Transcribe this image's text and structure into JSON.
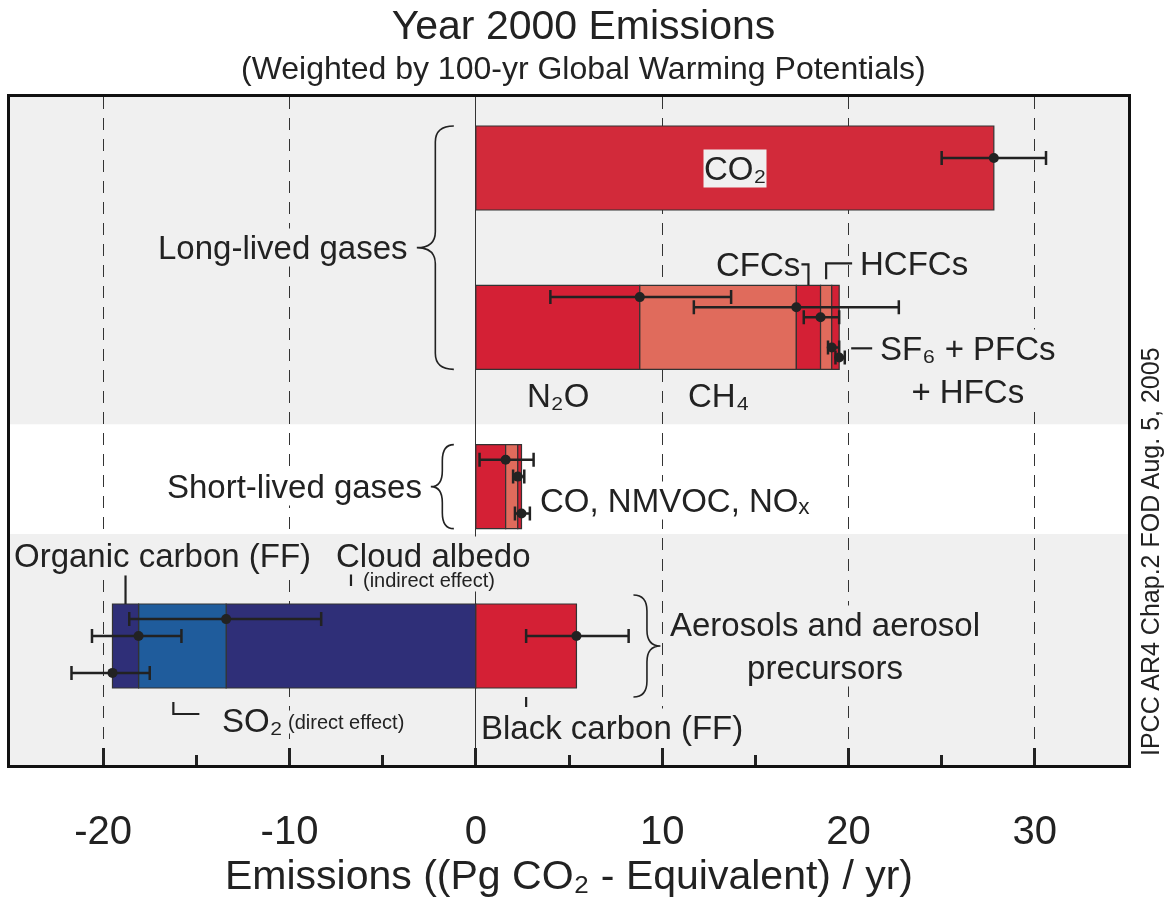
{
  "chart_data": {
    "type": "bar",
    "orientation": "horizontal",
    "stacked": true,
    "title": "Year 2000 Emissions",
    "subtitle": "(Weighted by 100-yr Global Warming Potentials)",
    "xlabel": "Emissions ((Pg CO₂ - Equivalent) / yr)",
    "categories": [
      null,
      null,
      null,
      null
    ],
    "xlim": [
      -25,
      35
    ],
    "xticks": [
      -20,
      {
        "value": -15,
        "label": null
      },
      -10,
      {
        "value": -5,
        "label": null
      },
      0,
      {
        "value": 5,
        "label": null
      },
      10,
      {
        "value": 15,
        "label": null
      },
      20,
      {
        "value": 25,
        "label": null
      },
      30
    ],
    "grid": "x",
    "series": [
      {
        "name": "CO₂",
        "color": "#d22a3a",
        "values": [
          27.8,
          null,
          null,
          null
        ],
        "errors": [
          [
            25.0,
            30.6
          ],
          null,
          null,
          null
        ]
      },
      {
        "name": "N₂O",
        "color": "#d42035",
        "values": [
          null,
          8.8,
          null,
          null
        ],
        "errors": [
          null,
          [
            4.0,
            13.7
          ],
          null,
          null
        ]
      },
      {
        "name": "CH₄",
        "color": "#e06b5c",
        "values": [
          null,
          8.4,
          null,
          null
        ],
        "errors": [
          null,
          [
            11.7,
            22.7
          ],
          null,
          null
        ]
      },
      {
        "name": "CFCs",
        "color": "#d42035",
        "values": [
          null,
          1.3,
          null,
          null
        ],
        "errors": [
          null,
          [
            17.6,
            19.5
          ],
          null,
          null
        ]
      },
      {
        "name": "HCFCs",
        "color": "#e06b5c",
        "values": [
          null,
          0.6,
          null,
          null
        ],
        "errors": [
          null,
          [
            18.9,
            19.5
          ],
          null,
          null
        ]
      },
      {
        "name": "SF₆ + PFCs + HFCs",
        "color": "#d42035",
        "values": [
          null,
          0.4,
          null,
          null
        ],
        "errors": [
          null,
          [
            19.3,
            19.8
          ],
          null,
          null
        ]
      },
      {
        "color": "#d42035",
        "values": [
          null,
          null,
          1.6,
          null
        ],
        "errors": [
          null,
          null,
          [
            0.2,
            3.1
          ],
          null
        ]
      },
      {
        "color": "#e06b5c",
        "values": [
          null,
          null,
          0.65,
          null
        ],
        "errors": [
          null,
          null,
          [
            2.0,
            2.6
          ],
          null
        ]
      },
      {
        "color": "#d42035",
        "values": [
          null,
          null,
          0.2,
          null
        ],
        "errors": [
          null,
          null,
          [
            2.1,
            2.9
          ],
          null
        ]
      },
      {
        "name": "Cloud albedo",
        "color": "#2f2f78",
        "values": [
          null,
          null,
          null,
          -13.4
        ],
        "errors": [
          null,
          null,
          null,
          [
            -18.6,
            -8.3
          ]
        ]
      },
      {
        "name": "SO₂",
        "color": "#1f5c9c",
        "values": [
          null,
          null,
          null,
          -4.7
        ],
        "errors": [
          null,
          null,
          null,
          [
            -20.6,
            -15.8
          ]
        ]
      },
      {
        "name": "Organic carbon (FF)",
        "color": "#2f2f78",
        "values": [
          null,
          null,
          null,
          -1.4
        ],
        "errors": [
          null,
          null,
          null,
          [
            -21.7,
            -17.5
          ]
        ]
      },
      {
        "name": "Black carbon (FF)",
        "color": "#d42035",
        "values": [
          null,
          null,
          null,
          5.4
        ],
        "errors": [
          null,
          null,
          null,
          [
            2.7,
            8.2
          ]
        ]
      }
    ],
    "annotations": [
      "Long-lived gases",
      "Short-lived gases",
      "Aerosols and aerosol precursors",
      "CO, NMVOC, NOₓ",
      "(indirect effect)",
      "(direct effect)",
      "IPCC AR4 Chap.2 FOD Aug. 5, 2005"
    ]
  }
}
